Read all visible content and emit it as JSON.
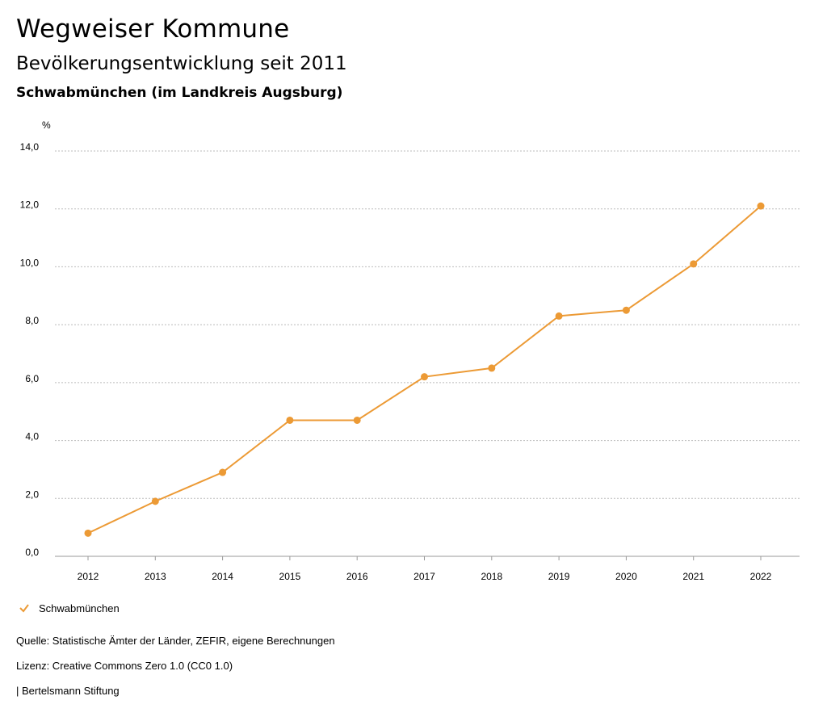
{
  "header": {
    "title": "Wegweiser Kommune",
    "subtitle": "Bevölkerungsentwicklung seit 2011",
    "region": "Schwabmünchen (im Landkreis Augsburg)"
  },
  "chart_data": {
    "type": "line",
    "y_unit_label": "%",
    "x": [
      "2012",
      "2013",
      "2014",
      "2015",
      "2016",
      "2017",
      "2018",
      "2019",
      "2020",
      "2021",
      "2022"
    ],
    "series": [
      {
        "name": "Schwabmünchen",
        "values": [
          0.8,
          1.9,
          2.9,
          4.7,
          4.7,
          6.2,
          6.5,
          8.3,
          8.5,
          10.1,
          12.1
        ]
      }
    ],
    "ylim": [
      0,
      14
    ],
    "yticks": [
      0,
      2,
      4,
      6,
      8,
      10,
      12,
      14
    ],
    "ytick_labels": [
      "0,0",
      "2,0",
      "4,0",
      "6,0",
      "8,0",
      "10,0",
      "12,0",
      "14,0"
    ],
    "grid": true,
    "color": "#ec9a35",
    "legend_position": "bottom-left"
  },
  "legend": {
    "label": "Schwabmünchen"
  },
  "footer": {
    "source": "Quelle: Statistische Ämter der Länder, ZEFIR, eigene Berechnungen",
    "license": "Lizenz: Creative Commons Zero 1.0 (CC0 1.0)",
    "publisher": "| Bertelsmann Stiftung"
  }
}
